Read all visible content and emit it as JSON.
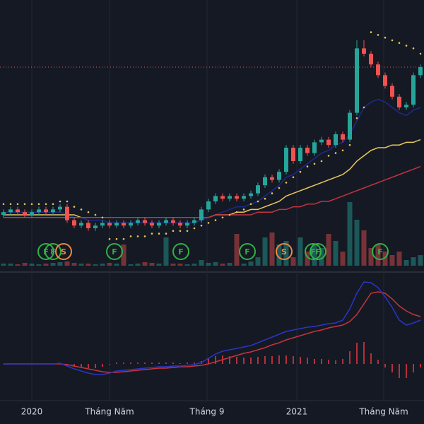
{
  "chart_data": {
    "type": "candlestick",
    "xlim": [
      -0.5,
      59.5
    ],
    "xticks": [
      {
        "value": 4,
        "label": "2020"
      },
      {
        "value": 15,
        "label": "Tháng Năm"
      },
      {
        "value": 28.8,
        "label": "Tháng 9"
      },
      {
        "value": 41.5,
        "label": "2021"
      },
      {
        "value": 53.8,
        "label": "Tháng Năm"
      }
    ],
    "ylim": [
      0,
      100
    ],
    "up_color": "#26a69a",
    "down_color": "#ef5350",
    "open": [
      20,
      21,
      22,
      21,
      20,
      21,
      22,
      21,
      22,
      23,
      18,
      16,
      17,
      15,
      16,
      17,
      16,
      17,
      16,
      17,
      18,
      17,
      16,
      17,
      18,
      17,
      16,
      17,
      18,
      22,
      25,
      27,
      26,
      27,
      26,
      27,
      28,
      31,
      34,
      33,
      36,
      45,
      40,
      45,
      43,
      47,
      48,
      46,
      50,
      48,
      58,
      82,
      80,
      76,
      72,
      68,
      64,
      60,
      61,
      72
    ],
    "high": [
      22,
      23,
      23,
      22,
      22,
      23,
      23,
      23,
      24,
      24,
      19,
      18,
      18,
      17,
      18,
      18,
      18,
      18,
      18,
      19,
      19,
      18,
      18,
      19,
      19,
      18,
      18,
      19,
      23,
      26,
      28,
      28,
      28,
      28,
      28,
      29,
      32,
      35,
      35,
      37,
      46,
      46,
      46,
      46,
      48,
      49,
      49,
      51,
      51,
      59,
      85,
      85,
      81,
      77,
      73,
      69,
      65,
      62,
      73,
      76
    ],
    "low": [
      19,
      20,
      20,
      19,
      19,
      20,
      20,
      20,
      21,
      17,
      15,
      15,
      14,
      14,
      15,
      15,
      15,
      15,
      15,
      16,
      16,
      15,
      15,
      16,
      16,
      15,
      15,
      16,
      17,
      21,
      24,
      25,
      25,
      25,
      25,
      26,
      27,
      30,
      32,
      32,
      35,
      39,
      39,
      42,
      42,
      46,
      45,
      45,
      47,
      47,
      57,
      79,
      75,
      71,
      67,
      63,
      59,
      59,
      60,
      71
    ],
    "close": [
      21,
      22,
      21,
      20,
      21,
      22,
      21,
      22,
      23,
      18,
      16,
      17,
      15,
      16,
      17,
      16,
      17,
      16,
      17,
      18,
      17,
      16,
      17,
      18,
      17,
      16,
      17,
      18,
      22,
      25,
      27,
      26,
      27,
      26,
      27,
      28,
      31,
      34,
      33,
      36,
      45,
      40,
      45,
      43,
      47,
      48,
      46,
      50,
      48,
      58,
      82,
      80,
      76,
      72,
      68,
      64,
      60,
      61,
      72,
      75
    ],
    "last_price_line": {
      "value": 75,
      "color": "#ef5350"
    },
    "lines": [
      {
        "color": "#1c2a8c",
        "values": [
          21,
          21,
          21,
          21,
          21,
          21,
          21,
          21,
          21,
          20,
          19,
          19,
          18,
          18,
          18,
          17,
          17,
          17,
          17,
          17,
          17,
          17,
          17,
          17,
          17,
          17,
          17,
          17,
          18,
          19,
          20,
          21,
          22,
          23,
          23,
          24,
          25,
          27,
          29,
          31,
          34,
          35,
          37,
          39,
          41,
          43,
          44,
          46,
          47,
          50,
          55,
          60,
          62,
          63,
          62,
          60,
          58,
          57,
          59,
          60
        ]
      },
      {
        "color": "#e8c95a",
        "values": [
          20,
          20,
          20,
          20,
          20,
          20,
          20,
          20,
          20,
          20,
          20,
          19,
          19,
          19,
          19,
          19,
          19,
          19,
          19,
          19,
          19,
          19,
          19,
          19,
          19,
          19,
          19,
          19,
          19,
          19,
          20,
          20,
          20,
          21,
          21,
          22,
          22,
          23,
          24,
          25,
          27,
          28,
          29,
          30,
          31,
          32,
          33,
          34,
          35,
          37,
          40,
          42,
          44,
          45,
          45,
          46,
          46,
          47,
          47,
          48
        ]
      },
      {
        "color": "#c4343e",
        "values": [
          19,
          19,
          19,
          19,
          19,
          19,
          19,
          19,
          19,
          19,
          19,
          19,
          19,
          19,
          19,
          19,
          19,
          19,
          19,
          19,
          19,
          19,
          19,
          19,
          19,
          19,
          19,
          19,
          19,
          19,
          20,
          20,
          20,
          20,
          20,
          20,
          21,
          21,
          21,
          22,
          22,
          23,
          23,
          24,
          24,
          25,
          25,
          26,
          27,
          28,
          29,
          30,
          31,
          32,
          33,
          34,
          35,
          36,
          37,
          38
        ]
      }
    ],
    "sar": {
      "color": "#e8c95a",
      "values": [
        24,
        24,
        24,
        24,
        24,
        24,
        24,
        24,
        25,
        25,
        23,
        22,
        21,
        20,
        19,
        11,
        11,
        11,
        12,
        12,
        12,
        13,
        13,
        13,
        14,
        14,
        14,
        15,
        16,
        17,
        18,
        19,
        20,
        21,
        22,
        24,
        25,
        26,
        28,
        30,
        32,
        34,
        36,
        38,
        39,
        40,
        42,
        43,
        44,
        46,
        56,
        60,
        88,
        87,
        86,
        85,
        84,
        83,
        82,
        80
      ]
    },
    "volume": {
      "ylim": [
        0,
        100
      ],
      "values": [
        3,
        3,
        2,
        4,
        3,
        2,
        3,
        4,
        5,
        6,
        4,
        3,
        3,
        2,
        3,
        4,
        3,
        30,
        2,
        3,
        5,
        4,
        3,
        40,
        3,
        3,
        2,
        3,
        8,
        4,
        5,
        3,
        4,
        45,
        3,
        6,
        12,
        40,
        47,
        30,
        35,
        12,
        40,
        20,
        30,
        25,
        45,
        35,
        20,
        90,
        65,
        50,
        25,
        30,
        20,
        15,
        20,
        8,
        12,
        15
      ]
    },
    "signals": [
      {
        "label": "F",
        "x": 6,
        "color": "#2fb344"
      },
      {
        "label": "F",
        "x": 7,
        "color": "#2fb344"
      },
      {
        "label": "S",
        "x": 8.5,
        "color": "#f0883e"
      },
      {
        "label": "F",
        "x": 15.7,
        "color": "#2fb344"
      },
      {
        "label": "F",
        "x": 25.1,
        "color": "#2fb344"
      },
      {
        "label": "F",
        "x": 34.5,
        "color": "#2fb344"
      },
      {
        "label": "S",
        "x": 39.7,
        "color": "#f0883e"
      },
      {
        "label": "F",
        "x": 43.8,
        "color": "#2fb344"
      },
      {
        "label": "F",
        "x": 44.5,
        "color": "#2fb344"
      },
      {
        "label": "F",
        "x": 53.3,
        "color": "#2fb344"
      }
    ],
    "macd": {
      "ylim": [
        -50,
        120
      ],
      "macd": {
        "color": "#2a36c4",
        "values": [
          0,
          0,
          0,
          0,
          0,
          0,
          0,
          0,
          1,
          -3,
          -7,
          -10,
          -13,
          -15,
          -15,
          -13,
          -10,
          -9,
          -8,
          -7,
          -6,
          -5,
          -4,
          -4,
          -3,
          -3,
          -2,
          -1,
          2,
          8,
          14,
          18,
          20,
          22,
          24,
          26,
          30,
          34,
          38,
          42,
          46,
          48,
          50,
          52,
          53,
          55,
          57,
          58,
          62,
          78,
          100,
          116,
          115,
          108,
          95,
          80,
          62,
          55,
          58,
          62
        ]
      },
      "signal": {
        "color": "#c4343e",
        "values": [
          0,
          0,
          0,
          0,
          0,
          0,
          0,
          0,
          0,
          -1,
          -3,
          -5,
          -7,
          -9,
          -11,
          -12,
          -12,
          -11,
          -10,
          -9,
          -8,
          -7,
          -6,
          -6,
          -5,
          -4,
          -4,
          -3,
          -2,
          0,
          3,
          6,
          9,
          12,
          15,
          17,
          20,
          23,
          27,
          30,
          34,
          37,
          40,
          43,
          46,
          48,
          51,
          53,
          55,
          60,
          70,
          85,
          100,
          102,
          100,
          92,
          82,
          75,
          70,
          67
        ]
      },
      "histogram": {
        "color": "#b5303a",
        "values": [
          0,
          0,
          0,
          0,
          0,
          0,
          0,
          0,
          1,
          -2,
          -4,
          -5,
          -6,
          -6,
          -4,
          -1,
          2,
          2,
          2,
          2,
          2,
          2,
          2,
          2,
          2,
          1,
          2,
          2,
          4,
          8,
          11,
          12,
          11,
          10,
          9,
          9,
          10,
          11,
          11,
          12,
          12,
          11,
          10,
          9,
          7,
          7,
          6,
          5,
          7,
          18,
          30,
          31,
          15,
          6,
          -5,
          -12,
          -20,
          -20,
          -12,
          -5
        ]
      }
    }
  }
}
